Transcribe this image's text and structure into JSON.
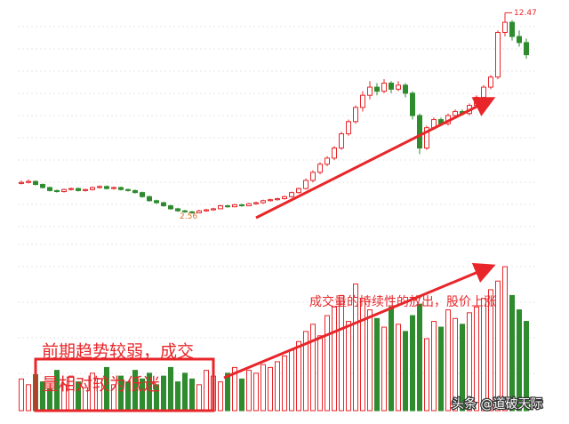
{
  "chart_data": {
    "type": "candlestick",
    "ohlc": [
      [
        4.05,
        4.2,
        4.0,
        4.1
      ],
      [
        4.1,
        4.25,
        4.05,
        4.15
      ],
      [
        4.15,
        4.2,
        3.95,
        4.0
      ],
      [
        4.0,
        4.05,
        3.8,
        3.85
      ],
      [
        3.85,
        3.9,
        3.65,
        3.7
      ],
      [
        3.7,
        3.75,
        3.6,
        3.65
      ],
      [
        3.65,
        3.8,
        3.6,
        3.75
      ],
      [
        3.75,
        3.85,
        3.7,
        3.8
      ],
      [
        3.8,
        3.85,
        3.65,
        3.7
      ],
      [
        3.7,
        3.8,
        3.65,
        3.75
      ],
      [
        3.75,
        3.9,
        3.7,
        3.85
      ],
      [
        3.85,
        3.95,
        3.8,
        3.9
      ],
      [
        3.9,
        3.95,
        3.75,
        3.8
      ],
      [
        3.8,
        3.9,
        3.75,
        3.85
      ],
      [
        3.85,
        3.9,
        3.7,
        3.75
      ],
      [
        3.75,
        3.8,
        3.65,
        3.7
      ],
      [
        3.7,
        3.75,
        3.55,
        3.6
      ],
      [
        3.6,
        3.65,
        3.35,
        3.4
      ],
      [
        3.4,
        3.45,
        3.15,
        3.2
      ],
      [
        3.2,
        3.25,
        3.05,
        3.1
      ],
      [
        3.1,
        3.15,
        2.9,
        2.95
      ],
      [
        2.95,
        3.0,
        2.75,
        2.8
      ],
      [
        2.8,
        2.85,
        2.65,
        2.7
      ],
      [
        2.7,
        2.75,
        2.6,
        2.65
      ],
      [
        2.65,
        2.7,
        2.56,
        2.6
      ],
      [
        2.6,
        2.75,
        2.58,
        2.7
      ],
      [
        2.7,
        2.8,
        2.65,
        2.75
      ],
      [
        2.75,
        2.85,
        2.7,
        2.8
      ],
      [
        2.8,
        3.0,
        2.78,
        2.95
      ],
      [
        2.95,
        3.0,
        2.85,
        2.9
      ],
      [
        2.9,
        3.05,
        2.88,
        3.0
      ],
      [
        3.0,
        3.05,
        2.9,
        2.95
      ],
      [
        2.95,
        3.1,
        2.93,
        3.05
      ],
      [
        3.05,
        3.15,
        3.0,
        3.1
      ],
      [
        3.1,
        3.25,
        3.05,
        3.2
      ],
      [
        3.2,
        3.3,
        3.15,
        3.25
      ],
      [
        3.25,
        3.35,
        3.2,
        3.3
      ],
      [
        3.3,
        3.45,
        3.25,
        3.4
      ],
      [
        3.4,
        3.65,
        3.35,
        3.6
      ],
      [
        3.6,
        3.85,
        3.55,
        3.8
      ],
      [
        3.8,
        4.3,
        3.75,
        4.2
      ],
      [
        4.2,
        4.7,
        4.1,
        4.6
      ],
      [
        4.6,
        5.1,
        4.5,
        5.0
      ],
      [
        5.0,
        5.4,
        4.9,
        5.3
      ],
      [
        5.3,
        5.9,
        5.2,
        5.8
      ],
      [
        5.8,
        6.6,
        5.7,
        6.5
      ],
      [
        6.5,
        7.2,
        6.4,
        7.1
      ],
      [
        7.1,
        7.9,
        7.0,
        7.8
      ],
      [
        7.8,
        8.6,
        7.6,
        8.4
      ],
      [
        8.4,
        9.1,
        8.2,
        8.8
      ],
      [
        8.8,
        9.0,
        8.4,
        8.6
      ],
      [
        8.6,
        9.2,
        8.5,
        9.0
      ],
      [
        9.0,
        9.1,
        8.5,
        8.7
      ],
      [
        8.7,
        9.1,
        8.6,
        8.9
      ],
      [
        8.9,
        9.0,
        8.3,
        8.5
      ],
      [
        8.5,
        8.6,
        7.2,
        7.4
      ],
      [
        7.4,
        7.5,
        5.5,
        5.8
      ],
      [
        5.8,
        6.9,
        5.7,
        6.8
      ],
      [
        6.8,
        7.3,
        6.7,
        7.2
      ],
      [
        7.2,
        7.3,
        6.9,
        7.0
      ],
      [
        7.0,
        7.5,
        6.9,
        7.4
      ],
      [
        7.4,
        7.7,
        7.3,
        7.6
      ],
      [
        7.6,
        7.7,
        7.4,
        7.5
      ],
      [
        7.5,
        8.0,
        7.4,
        7.9
      ],
      [
        7.9,
        8.4,
        7.8,
        8.3
      ],
      [
        8.3,
        8.9,
        8.2,
        8.8
      ],
      [
        8.8,
        9.4,
        8.7,
        9.3
      ],
      [
        9.3,
        11.6,
        9.2,
        11.5
      ],
      [
        11.5,
        12.47,
        11.3,
        12.0
      ],
      [
        12.0,
        12.1,
        11.1,
        11.3
      ],
      [
        11.3,
        11.6,
        10.8,
        11.0
      ],
      [
        11.0,
        11.2,
        10.2,
        10.4
      ]
    ],
    "volume": [
      22,
      18,
      25,
      20,
      15,
      28,
      18,
      24,
      20,
      16,
      26,
      22,
      30,
      18,
      24,
      20,
      28,
      22,
      26,
      18,
      24,
      30,
      20,
      26,
      22,
      18,
      28,
      24,
      20,
      26,
      30,
      22,
      28,
      26,
      32,
      30,
      34,
      38,
      42,
      48,
      55,
      60,
      52,
      66,
      72,
      80,
      62,
      88,
      78,
      70,
      64,
      58,
      72,
      60,
      55,
      66,
      74,
      50,
      62,
      58,
      70,
      64,
      60,
      68,
      72,
      78,
      84,
      90,
      100,
      80,
      70,
      62
    ],
    "ylim": [
      1.7,
      13.1
    ],
    "volume_ylim": [
      0,
      100
    ],
    "up_color": "#e8262a",
    "down_color": "#2e8b2e",
    "high_label": 12.47,
    "low_label": 2.56,
    "annotations": [
      "成交量的持续性的放出，股价上涨",
      "前期趋势较弱，成交",
      "量相对较为低迷"
    ],
    "watermark": "头条 @道破天际"
  }
}
